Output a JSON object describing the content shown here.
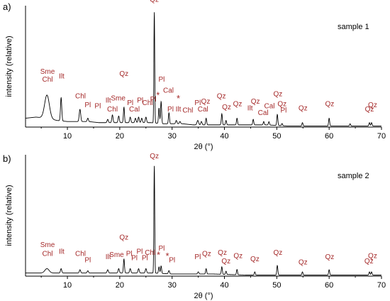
{
  "chart_data": [
    {
      "type": "line",
      "panel_label": "a)",
      "sample_label": "sample 1",
      "xlabel": "2θ (°)",
      "ylabel": "intensity (relative)",
      "xlim": [
        2,
        70
      ],
      "ylim": [
        0,
        100
      ],
      "x_ticks": [
        10,
        20,
        30,
        40,
        50,
        60,
        70
      ],
      "baseline": [
        [
          2,
          8
        ],
        [
          4,
          9
        ],
        [
          6,
          8
        ],
        [
          8,
          6
        ],
        [
          10,
          5
        ],
        [
          12,
          5
        ],
        [
          14,
          5
        ],
        [
          16,
          4
        ],
        [
          18,
          4
        ],
        [
          20,
          4
        ],
        [
          22,
          4
        ],
        [
          24,
          4
        ],
        [
          26,
          4
        ],
        [
          28,
          3
        ],
        [
          30,
          3
        ],
        [
          32,
          3
        ],
        [
          34,
          2
        ],
        [
          36,
          2
        ],
        [
          38,
          2
        ],
        [
          40,
          2
        ],
        [
          44,
          2
        ],
        [
          48,
          2
        ],
        [
          52,
          1
        ],
        [
          56,
          1
        ],
        [
          60,
          1
        ],
        [
          64,
          1
        ],
        [
          68,
          1
        ],
        [
          70,
          1
        ]
      ],
      "peaks": [
        [
          6.1,
          21,
          0.45
        ],
        [
          8.8,
          21,
          0.12
        ],
        [
          12.4,
          11,
          0.14
        ],
        [
          13.9,
          3,
          0.12
        ],
        [
          17.7,
          3,
          0.12
        ],
        [
          18.6,
          7,
          0.12
        ],
        [
          19.8,
          6,
          0.12
        ],
        [
          20.8,
          14,
          0.1
        ],
        [
          22.0,
          5,
          0.12
        ],
        [
          23.0,
          4,
          0.12
        ],
        [
          23.6,
          5,
          0.12
        ],
        [
          24.2,
          4,
          0.12
        ],
        [
          25.0,
          5,
          0.12
        ],
        [
          26.6,
          100,
          0.08
        ],
        [
          27.5,
          14,
          0.1
        ],
        [
          27.9,
          20,
          0.1
        ],
        [
          29.4,
          10,
          0.1
        ],
        [
          30.8,
          3,
          0.12
        ],
        [
          31.5,
          2,
          0.12
        ],
        [
          34.9,
          4,
          0.15
        ],
        [
          35.6,
          3,
          0.12
        ],
        [
          36.5,
          6,
          0.1
        ],
        [
          39.5,
          10,
          0.1
        ],
        [
          40.3,
          4,
          0.1
        ],
        [
          42.4,
          6,
          0.1
        ],
        [
          45.5,
          5,
          0.1
        ],
        [
          47.5,
          3,
          0.1
        ],
        [
          48.5,
          3,
          0.1
        ],
        [
          50.1,
          10,
          0.1
        ],
        [
          51.0,
          2,
          0.1
        ],
        [
          54.9,
          3,
          0.1
        ],
        [
          60.0,
          7,
          0.1
        ],
        [
          64.0,
          2,
          0.1
        ],
        [
          67.7,
          3,
          0.1
        ],
        [
          68.1,
          3,
          0.1
        ]
      ],
      "annotations": [
        {
          "text": "Sme",
          "x": 6.2,
          "y": 48
        },
        {
          "text": "Chl",
          "x": 6.2,
          "y": 41
        },
        {
          "text": "Ilt",
          "x": 8.9,
          "y": 44
        },
        {
          "text": "Chl",
          "x": 12.5,
          "y": 26
        },
        {
          "text": "Pl",
          "x": 13.9,
          "y": 18
        },
        {
          "text": "Pl",
          "x": 15.8,
          "y": 17
        },
        {
          "text": "Ilt",
          "x": 17.8,
          "y": 22
        },
        {
          "text": "Chl",
          "x": 18.6,
          "y": 14
        },
        {
          "text": "Sme",
          "x": 19.7,
          "y": 24
        },
        {
          "text": "Qz",
          "x": 20.8,
          "y": 46
        },
        {
          "text": "Pl",
          "x": 22.0,
          "y": 20
        },
        {
          "text": "Cal",
          "x": 22.8,
          "y": 14
        },
        {
          "text": "Pl",
          "x": 23.9,
          "y": 22
        },
        {
          "text": "Chl",
          "x": 25.3,
          "y": 20
        },
        {
          "text": "Pl",
          "x": 26.4,
          "y": 23
        },
        {
          "text": "Qz",
          "x": 26.6,
          "y": 113
        },
        {
          "text": "Pl",
          "x": 28.0,
          "y": 41
        },
        {
          "text": "*",
          "x": 27.3,
          "y": 26
        },
        {
          "text": "Cal",
          "x": 29.3,
          "y": 31
        },
        {
          "text": "*",
          "x": 31.2,
          "y": 23
        },
        {
          "text": "Pl",
          "x": 29.7,
          "y": 14
        },
        {
          "text": "Ilt",
          "x": 31.2,
          "y": 14
        },
        {
          "text": "Chl",
          "x": 33.0,
          "y": 13
        },
        {
          "text": "Pl",
          "x": 34.9,
          "y": 20
        },
        {
          "text": "Qz",
          "x": 36.4,
          "y": 21
        },
        {
          "text": "Cal",
          "x": 35.9,
          "y": 14
        },
        {
          "text": "Qz",
          "x": 39.4,
          "y": 26
        },
        {
          "text": "Qz",
          "x": 40.4,
          "y": 16
        },
        {
          "text": "Qz",
          "x": 42.5,
          "y": 19
        },
        {
          "text": "Ilt",
          "x": 44.9,
          "y": 15
        },
        {
          "text": "Qz",
          "x": 45.9,
          "y": 21
        },
        {
          "text": "Cal",
          "x": 47.4,
          "y": 11
        },
        {
          "text": "Cal",
          "x": 48.6,
          "y": 17
        },
        {
          "text": "Qz",
          "x": 50.2,
          "y": 28
        },
        {
          "text": "Qz",
          "x": 51.0,
          "y": 19
        },
        {
          "text": "Pl",
          "x": 51.3,
          "y": 13
        },
        {
          "text": "Qz",
          "x": 55.0,
          "y": 15
        },
        {
          "text": "Qz",
          "x": 60.1,
          "y": 19
        },
        {
          "text": "Qz",
          "x": 67.7,
          "y": 14
        },
        {
          "text": "Qz",
          "x": 68.3,
          "y": 18
        }
      ]
    },
    {
      "type": "line",
      "panel_label": "b)",
      "sample_label": "sample 2",
      "xlabel": "2θ (°)",
      "ylabel": "intensity (relative)",
      "xlim": [
        2,
        70
      ],
      "ylim": [
        0,
        100
      ],
      "x_ticks": [
        10,
        20,
        30,
        40,
        50,
        60,
        70
      ],
      "baseline": [
        [
          2,
          3
        ],
        [
          4,
          3
        ],
        [
          6,
          3
        ],
        [
          8,
          3
        ],
        [
          10,
          3
        ],
        [
          14,
          3
        ],
        [
          18,
          3
        ],
        [
          22,
          3
        ],
        [
          26,
          3
        ],
        [
          30,
          2
        ],
        [
          34,
          2
        ],
        [
          38,
          2
        ],
        [
          44,
          1
        ],
        [
          50,
          1
        ],
        [
          56,
          1
        ],
        [
          62,
          1
        ],
        [
          70,
          1
        ]
      ],
      "peaks": [
        [
          6.1,
          4,
          0.4
        ],
        [
          8.8,
          4,
          0.12
        ],
        [
          12.4,
          3,
          0.12
        ],
        [
          13.9,
          2,
          0.12
        ],
        [
          17.7,
          3,
          0.12
        ],
        [
          19.8,
          4,
          0.12
        ],
        [
          20.8,
          13,
          0.1
        ],
        [
          22.0,
          4,
          0.12
        ],
        [
          23.6,
          4,
          0.12
        ],
        [
          25.0,
          4,
          0.12
        ],
        [
          26.6,
          100,
          0.08
        ],
        [
          27.5,
          6,
          0.1
        ],
        [
          27.9,
          7,
          0.1
        ],
        [
          29.4,
          3,
          0.12
        ],
        [
          35.0,
          2,
          0.12
        ],
        [
          36.5,
          5,
          0.1
        ],
        [
          39.5,
          7,
          0.1
        ],
        [
          40.3,
          3,
          0.1
        ],
        [
          42.4,
          5,
          0.1
        ],
        [
          45.8,
          3,
          0.1
        ],
        [
          50.1,
          9,
          0.1
        ],
        [
          54.9,
          3,
          0.1
        ],
        [
          60.0,
          5,
          0.1
        ],
        [
          67.7,
          3,
          0.1
        ],
        [
          68.1,
          3,
          0.1
        ]
      ],
      "annotations": [
        {
          "text": "Sme",
          "x": 6.2,
          "y": 27
        },
        {
          "text": "Chl",
          "x": 6.2,
          "y": 19
        },
        {
          "text": "Ilt",
          "x": 8.9,
          "y": 21
        },
        {
          "text": "Chl",
          "x": 12.5,
          "y": 19
        },
        {
          "text": "Pl",
          "x": 13.9,
          "y": 13
        },
        {
          "text": "Ilt",
          "x": 17.8,
          "y": 16
        },
        {
          "text": "Sme",
          "x": 19.4,
          "y": 18
        },
        {
          "text": "Qz",
          "x": 20.8,
          "y": 34
        },
        {
          "text": "Pl",
          "x": 21.8,
          "y": 19
        },
        {
          "text": "Pl",
          "x": 22.8,
          "y": 15
        },
        {
          "text": "Pl",
          "x": 23.8,
          "y": 21
        },
        {
          "text": "Pl",
          "x": 24.8,
          "y": 15
        },
        {
          "text": "Chl",
          "x": 25.8,
          "y": 20
        },
        {
          "text": "Qz",
          "x": 26.6,
          "y": 110
        },
        {
          "text": "Pl",
          "x": 28.0,
          "y": 24
        },
        {
          "text": "*",
          "x": 27.4,
          "y": 17
        },
        {
          "text": "*",
          "x": 29.1,
          "y": 16
        },
        {
          "text": "Pl",
          "x": 30.0,
          "y": 13
        },
        {
          "text": "Pl",
          "x": 34.9,
          "y": 16
        },
        {
          "text": "Qz",
          "x": 36.6,
          "y": 19
        },
        {
          "text": "Qz",
          "x": 39.6,
          "y": 20
        },
        {
          "text": "Qz",
          "x": 40.3,
          "y": 12
        },
        {
          "text": "Qz",
          "x": 42.6,
          "y": 17
        },
        {
          "text": "Qz",
          "x": 45.8,
          "y": 14
        },
        {
          "text": "Qz",
          "x": 50.2,
          "y": 20
        },
        {
          "text": "Qz",
          "x": 55.0,
          "y": 11
        },
        {
          "text": "Qz",
          "x": 60.1,
          "y": 16
        },
        {
          "text": "Qz",
          "x": 67.6,
          "y": 12
        },
        {
          "text": "Qz",
          "x": 68.3,
          "y": 17
        }
      ]
    }
  ],
  "colors": {
    "annotation": "#a52a2a",
    "trace": "#000000",
    "axis": "#000000"
  }
}
